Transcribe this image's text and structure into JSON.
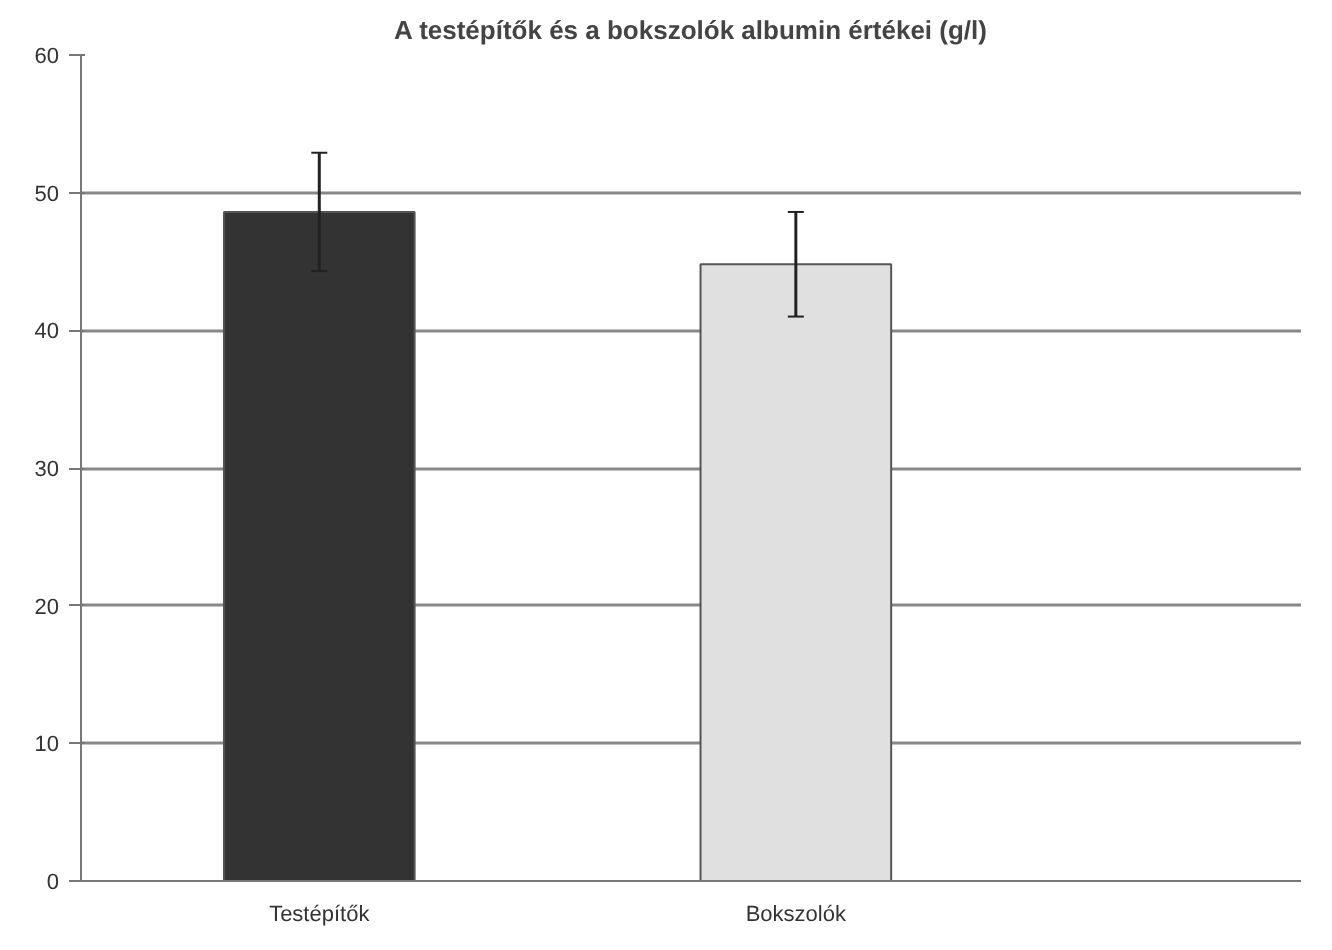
{
  "chart_data": {
    "type": "bar",
    "title": "A testépítők és a bokszolók albumin értékei (g/l)",
    "categories": [
      "Testépítők",
      "Bokszolók"
    ],
    "values": [
      48.6,
      44.8
    ],
    "errors": [
      4.3,
      3.8
    ],
    "colors": [
      "#333333",
      "#e0e0e0"
    ],
    "ylim": [
      0,
      60
    ],
    "yticks": [
      0,
      10,
      20,
      30,
      40,
      50,
      60
    ],
    "grid": "y"
  }
}
